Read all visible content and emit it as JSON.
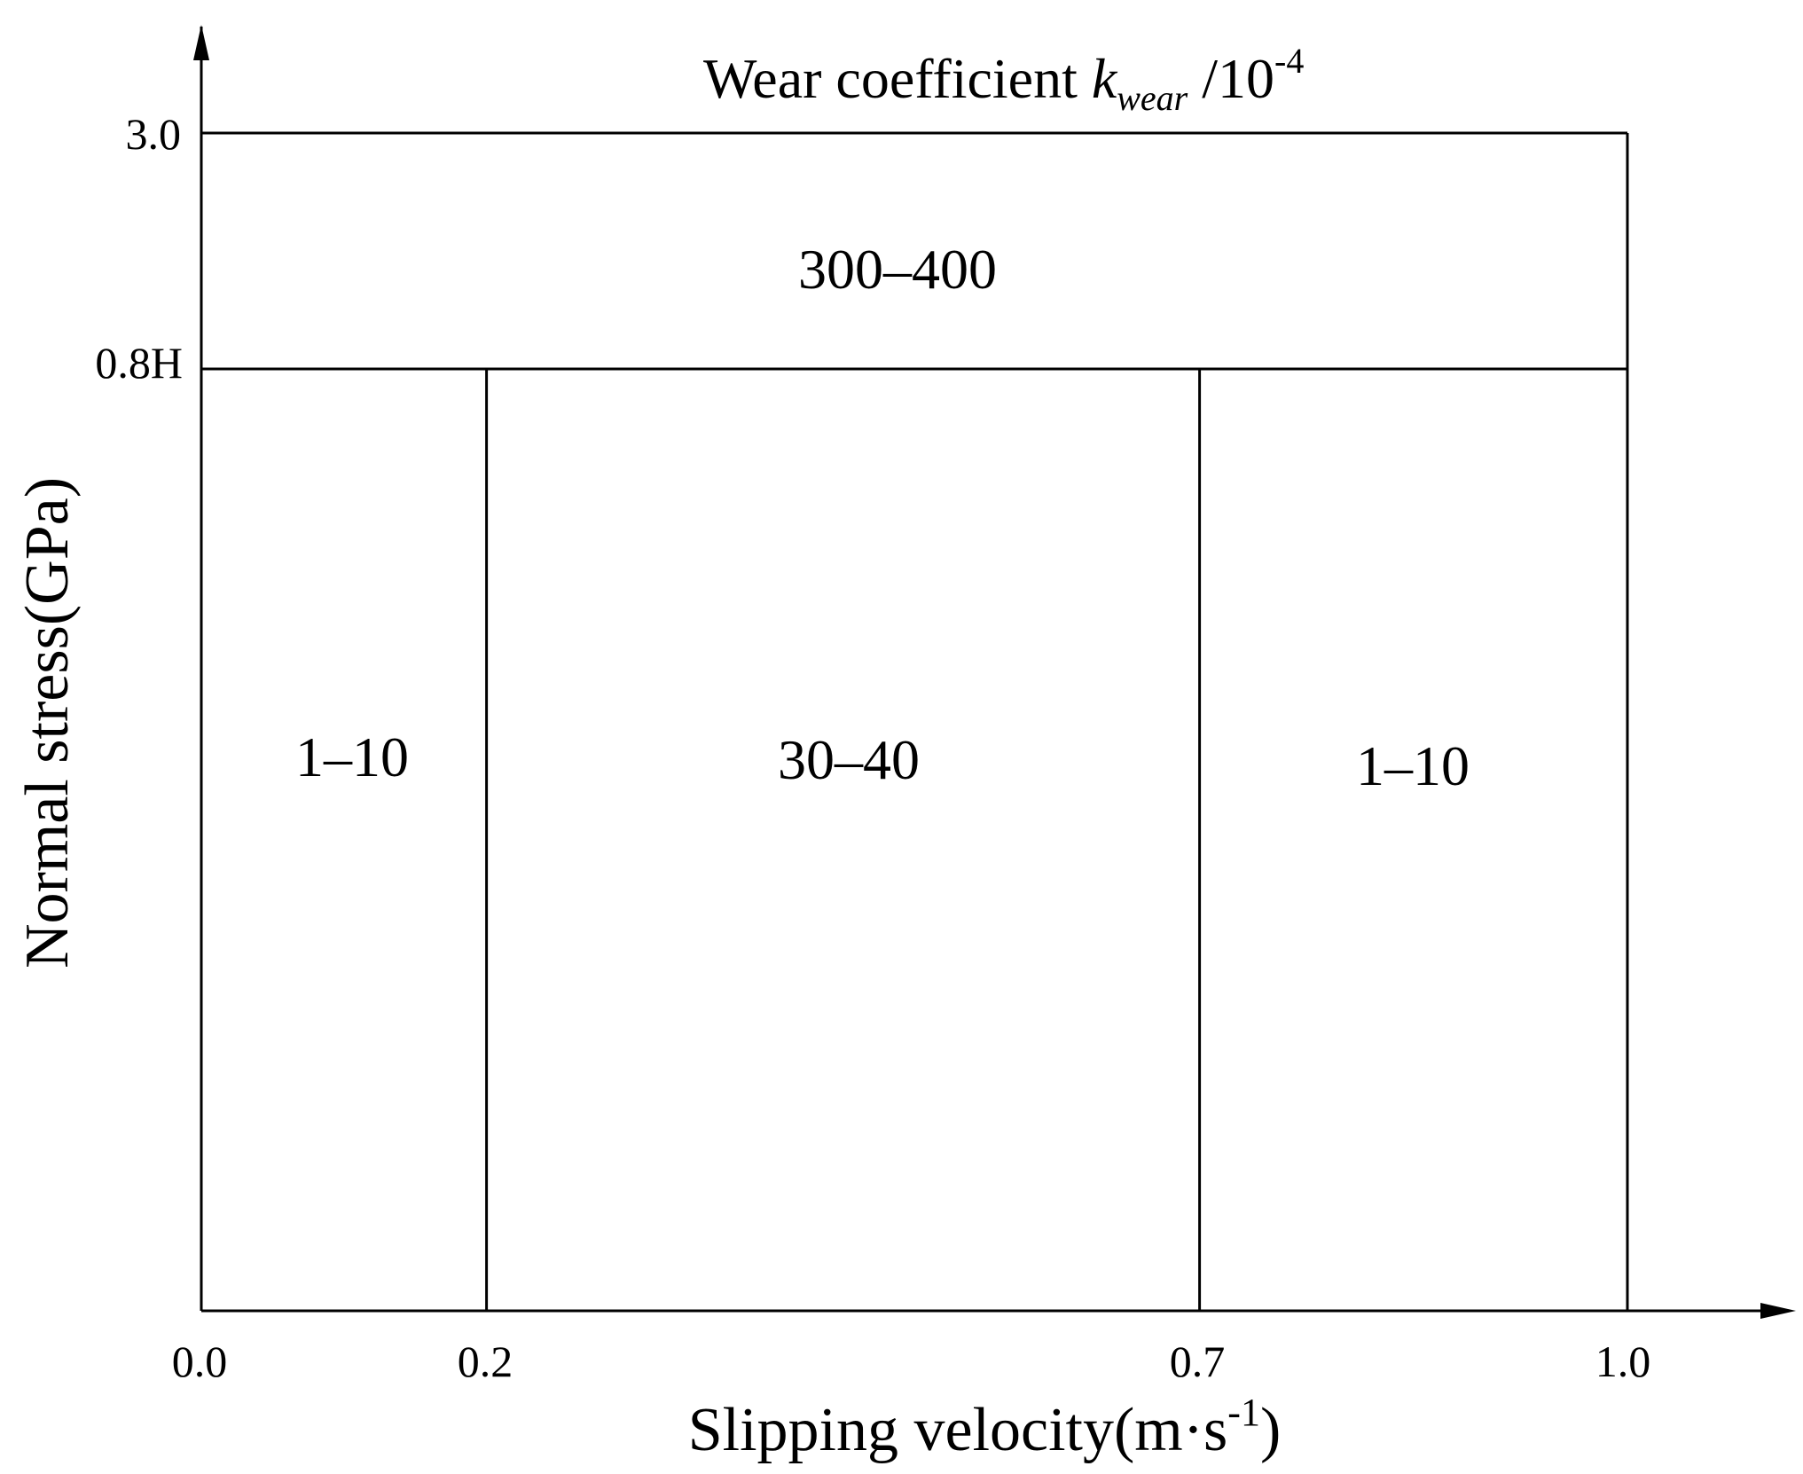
{
  "chart_data": {
    "type": "region_map",
    "title": {
      "prefix": "Wear coefficient ",
      "symbol": "k",
      "subscript": "wear",
      "unit": " /10",
      "exponent": "-4"
    },
    "xlabel": {
      "text": "Slipping velocity(m·s",
      "exponent": "-1",
      "close": ")"
    },
    "ylabel": "Normal stress(GPa)",
    "x_ticks": [
      "0.0",
      "0.2",
      "0.7",
      "1.0"
    ],
    "y_ticks": [
      "3.0",
      "0.8H"
    ],
    "xlim": [
      0.0,
      1.0
    ],
    "boundaries": {
      "x": [
        0.2,
        0.7
      ],
      "y": [
        "0.8H"
      ]
    },
    "regions": [
      {
        "value": "300–400",
        "x_range": [
          0.0,
          1.0
        ],
        "stress_range": [
          "0.8H",
          "3.0"
        ]
      },
      {
        "value": "1–10",
        "x_range": [
          0.0,
          0.2
        ],
        "stress_range": [
          "0",
          "0.8H"
        ]
      },
      {
        "value": "30–40",
        "x_range": [
          0.2,
          0.7
        ],
        "stress_range": [
          "0",
          "0.8H"
        ]
      },
      {
        "value": "1–10",
        "x_range": [
          0.7,
          1.0
        ],
        "stress_range": [
          "0",
          "0.8H"
        ]
      }
    ],
    "colors": {
      "lines": "#000000",
      "background": "#ffffff"
    }
  }
}
